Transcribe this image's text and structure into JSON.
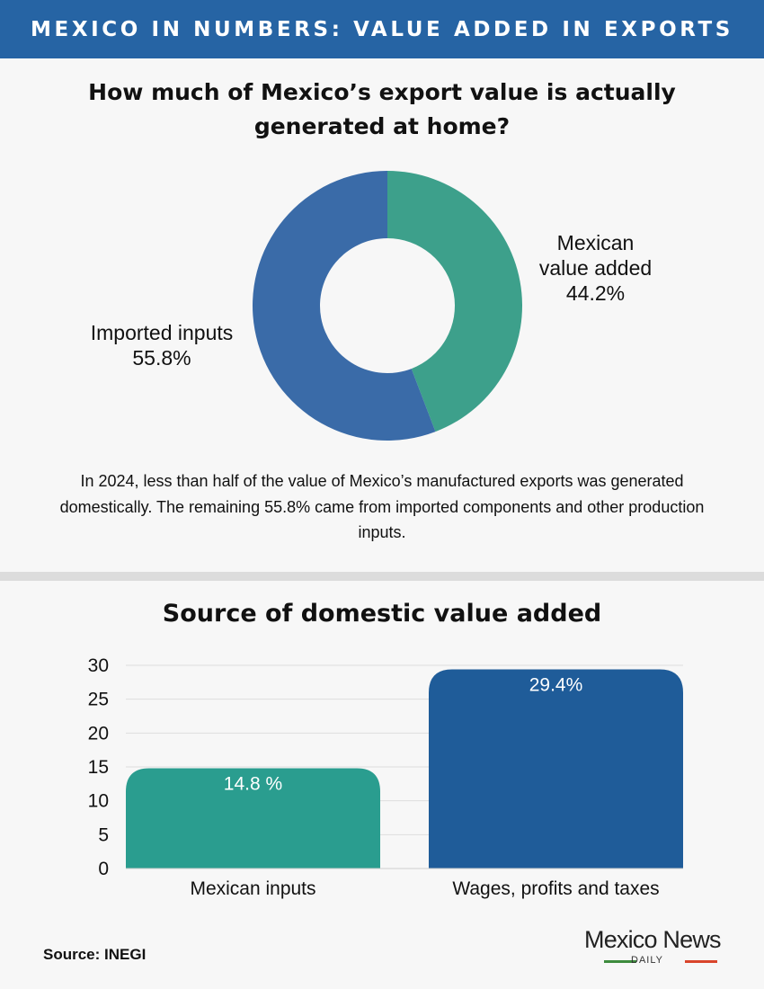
{
  "header": {
    "title": "MEXICO IN NUMBERS: VALUE ADDED IN EXPORTS"
  },
  "donut": {
    "title": "How much of Mexico’s export value is actually generated at home?",
    "description": "In 2024, less than half of the value of Mexico’s manufactured exports was generated domestically. The remaining 55.8% came from imported components and other production inputs.",
    "labels": {
      "mexican_line1": "Mexican",
      "mexican_line2": "value added",
      "mexican_value": "44.2%",
      "imported_line1": "Imported inputs",
      "imported_value": "55.8%"
    }
  },
  "bars": {
    "title": "Source of domestic value added"
  },
  "chart_data": [
    {
      "type": "pie",
      "title": "How much of Mexico’s export value is actually generated at home?",
      "categories": [
        "Mexican value added",
        "Imported inputs"
      ],
      "values": [
        44.2,
        55.8
      ],
      "colors": [
        "#3da08b",
        "#3a6ba8"
      ],
      "legend": "none"
    },
    {
      "type": "bar",
      "title": "Source of domestic value added",
      "categories": [
        "Mexican inputs",
        "Wages, profits and taxes"
      ],
      "values": [
        14.8,
        29.4
      ],
      "value_labels": [
        "14.8 %",
        "29.4%"
      ],
      "colors": [
        "#2a9d8f",
        "#1f5c99"
      ],
      "yticks": [
        "0",
        "5",
        "10",
        "15",
        "20",
        "25",
        "30"
      ],
      "ylim": [
        0,
        30
      ],
      "grid": true,
      "xlabel": "",
      "ylabel": ""
    }
  ],
  "footer": {
    "source": "Source: INEGI"
  },
  "logo": {
    "main": "Mexico News",
    "sub": "DAILY"
  }
}
